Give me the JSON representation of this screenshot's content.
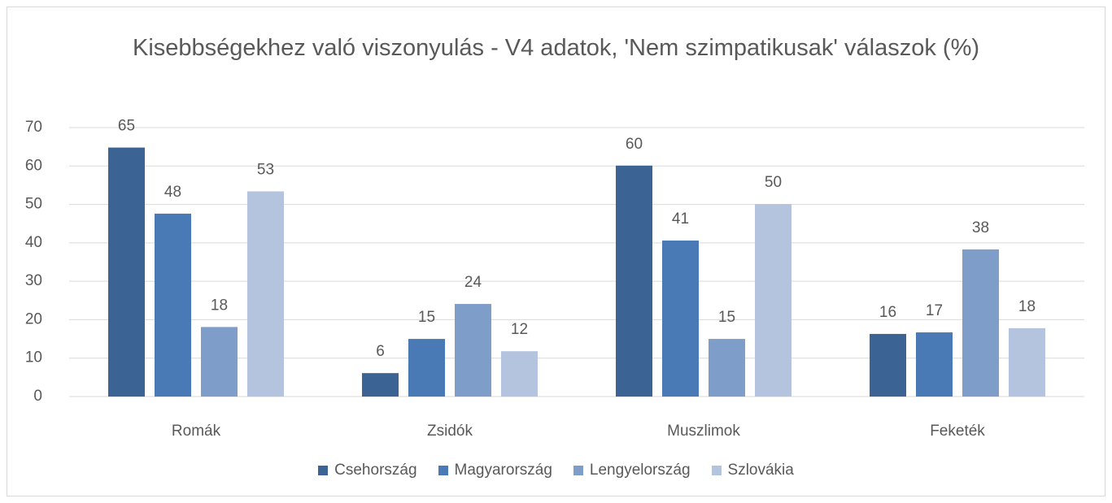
{
  "chart_data": {
    "type": "bar",
    "title": "Kisebbségekhez való viszonyulás - V4 adatok, 'Nem szimpatikusak' válaszok (%)",
    "categories": [
      "Romák",
      "Zsidók",
      "Muszlimok",
      "Feketék"
    ],
    "series": [
      {
        "name": "Csehország",
        "color": "#3b6495",
        "values": [
          64.8,
          6.1,
          60.1,
          16.3
        ],
        "value_labels": [
          "65",
          "6",
          "60",
          "16"
        ]
      },
      {
        "name": "Magyarország",
        "color": "#4a7ab6",
        "values": [
          47.6,
          15,
          40.6,
          16.7
        ],
        "value_labels": [
          "48",
          "15",
          "41",
          "17"
        ]
      },
      {
        "name": "Lengyelország",
        "color": "#7f9dc9",
        "values": [
          18.1,
          24.1,
          15,
          38.3
        ],
        "value_labels": [
          "18",
          "24",
          "15",
          "38"
        ]
      },
      {
        "name": "Szlovákia",
        "color": "#b4c3de",
        "values": [
          53.4,
          11.8,
          50.1,
          17.8
        ],
        "value_labels": [
          "53",
          "12",
          "50",
          "18"
        ]
      }
    ],
    "ylim": [
      0,
      70
    ],
    "yticks": [
      0,
      10,
      20,
      30,
      40,
      50,
      60,
      70
    ],
    "grid": true,
    "legend": "bottom"
  }
}
